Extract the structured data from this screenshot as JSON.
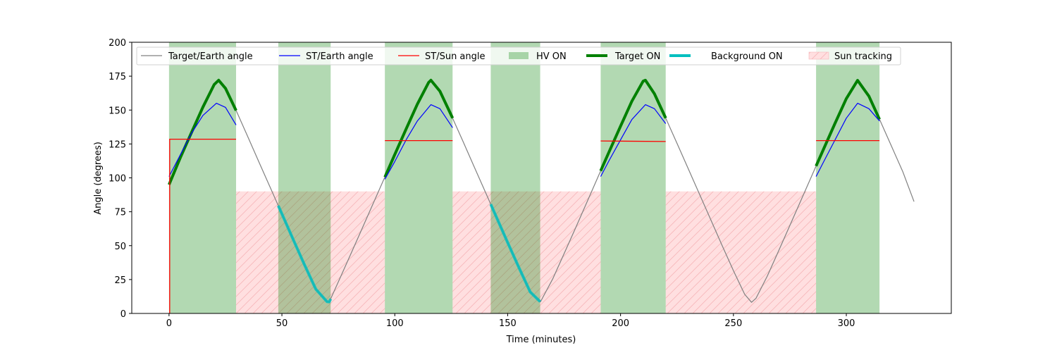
{
  "chart_data": {
    "type": "line",
    "title": "",
    "xlabel": "Time (minutes)",
    "ylabel": "Angle (degrees)",
    "xlim": [
      -16.5,
      346.5
    ],
    "ylim": [
      0,
      200
    ],
    "xticks": [
      0,
      50,
      100,
      150,
      200,
      250,
      300
    ],
    "yticks": [
      0,
      25,
      50,
      75,
      100,
      125,
      150,
      175,
      200
    ],
    "legend_placement": "top (inside, single row)",
    "legend": [
      {
        "label": "Target/Earth angle",
        "kind": "line",
        "color": "#808080"
      },
      {
        "label": "ST/Earth angle",
        "kind": "line",
        "color": "#0000ff"
      },
      {
        "label": "ST/Sun angle",
        "kind": "line",
        "color": "#ff0000"
      },
      {
        "label": "HV ON",
        "kind": "patch",
        "color": "#b2d8b2"
      },
      {
        "label": "Target ON",
        "kind": "thickline",
        "color": "#008000"
      },
      {
        "label": "Background ON",
        "kind": "thickline",
        "color": "#00bfbf"
      },
      {
        "label": "Sun tracking",
        "kind": "hatch",
        "color": "#ffdfe0"
      }
    ],
    "hv_on_intervals": [
      [
        0,
        29.7
      ],
      [
        48.4,
        71.6
      ],
      [
        95.6,
        125.6
      ],
      [
        142.5,
        164.4
      ],
      [
        191.2,
        220
      ],
      [
        286.6,
        314.7
      ]
    ],
    "sun_tracking": {
      "height": 90,
      "intervals": [
        [
          29.7,
          95.6
        ],
        [
          125.6,
          191.2
        ],
        [
          220,
          286.6
        ]
      ]
    },
    "target_on_intervals": [
      [
        0,
        29.7
      ],
      [
        95.6,
        125.6
      ],
      [
        191.2,
        220
      ],
      [
        286.6,
        314.7
      ]
    ],
    "background_on_intervals": [
      [
        48.4,
        71.6
      ],
      [
        142.5,
        164.4
      ]
    ],
    "target_earth": {
      "x": [
        0,
        5,
        10,
        15,
        20,
        22,
        25,
        30,
        35,
        40,
        45,
        50,
        55,
        60,
        65,
        70,
        71,
        75,
        80,
        85,
        90,
        95,
        100,
        105,
        110,
        115,
        116,
        120,
        125,
        130,
        135,
        140,
        145,
        150,
        155,
        160,
        164.5,
        170,
        175,
        180,
        185,
        190,
        195,
        200,
        205,
        210,
        211,
        215,
        220,
        225,
        230,
        235,
        240,
        245,
        250,
        255,
        258,
        260,
        265,
        270,
        275,
        280,
        285,
        290,
        295,
        300,
        305,
        310,
        315,
        320,
        325,
        330
      ],
      "y": [
        95,
        114.9,
        133.6,
        152.1,
        168.8,
        172,
        166,
        148.6,
        129.9,
        111,
        92.3,
        73.4,
        54.5,
        35.9,
        18,
        8.7,
        8.5,
        23.4,
        41.9,
        60.6,
        79.5,
        98.3,
        117.2,
        136,
        154.4,
        170.4,
        172,
        163.9,
        146.3,
        127.7,
        108.8,
        90,
        71.1,
        52.3,
        33.7,
        15.8,
        8.5,
        25.6,
        44.1,
        62.8,
        81.7,
        100.6,
        119.5,
        138.1,
        156.5,
        171.3,
        172,
        162,
        144.1,
        125.5,
        106.6,
        87.8,
        69,
        50.1,
        31.6,
        14.1,
        8.2,
        11.2,
        27.6,
        46.1,
        64.9,
        83.7,
        102.7,
        121.5,
        140.2,
        158.4,
        171.9,
        160.2,
        142.1,
        123.4,
        104.6,
        82.5
      ]
    },
    "st_earth_segments": [
      {
        "x": [
          0,
          5,
          10,
          15,
          21,
          25,
          29.7
        ],
        "y": [
          101,
          117,
          133,
          146,
          155,
          152,
          139
        ]
      },
      {
        "x": [
          95.6,
          100,
          105,
          110,
          116,
          120,
          125.6
        ],
        "y": [
          99,
          112,
          128,
          142,
          154,
          151,
          137
        ]
      },
      {
        "x": [
          191.2,
          195,
          200,
          205,
          211,
          215,
          220
        ],
        "y": [
          101,
          113,
          128,
          143,
          154,
          151,
          140
        ]
      },
      {
        "x": [
          286.6,
          290,
          295,
          300,
          305,
          310,
          314.7
        ],
        "y": [
          101,
          112,
          128,
          144,
          155,
          151,
          142
        ]
      }
    ],
    "st_sun_segments": [
      {
        "x": [
          0.3,
          0.3,
          29.7
        ],
        "y": [
          0,
          128.5,
          128.5
        ]
      },
      {
        "x": [
          95.6,
          125.6
        ],
        "y": [
          127.5,
          127.5
        ]
      },
      {
        "x": [
          191.2,
          220
        ],
        "y": [
          127.2,
          126.8
        ]
      },
      {
        "x": [
          286.6,
          314.7
        ],
        "y": [
          127.5,
          127.5
        ]
      }
    ]
  }
}
